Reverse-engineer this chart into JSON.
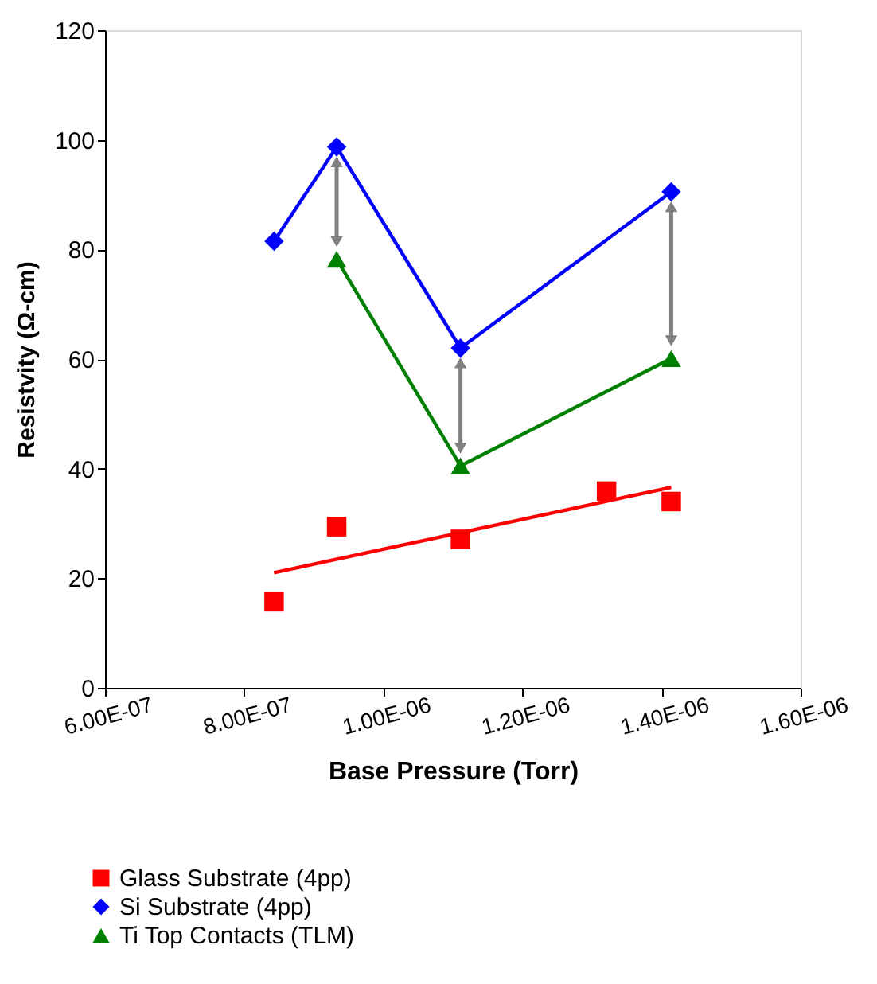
{
  "chart_data": {
    "type": "scatter",
    "xlabel": "Base Pressure (Torr)",
    "ylabel": "Resistvity (Ω-cm)",
    "xlim": [
      6e-07,
      1.6e-06
    ],
    "xticks": [
      {
        "value": 6e-07,
        "label": "6.00E-07"
      },
      {
        "value": 8e-07,
        "label": "8.00E-07"
      },
      {
        "value": 1e-06,
        "label": "1.00E-06"
      },
      {
        "value": 1.2e-06,
        "label": "1.20E-06"
      },
      {
        "value": 1.4e-06,
        "label": "1.40E-06"
      },
      {
        "value": 1.6e-06,
        "label": "1.60E-06"
      }
    ],
    "ylim": [
      0,
      120
    ],
    "yticks": [
      0,
      20,
      40,
      60,
      80,
      100,
      120
    ],
    "grid": false,
    "legend": "bottom",
    "series": [
      {
        "name": "Glass Substrate (4pp)",
        "marker": "square",
        "color": "#ff0000",
        "x": [
          8.43e-07,
          9.33e-07,
          1.111e-06,
          1.321e-06,
          1.414e-06
        ],
        "values": [
          15.7,
          29.4,
          27.1,
          35.9,
          34.0
        ]
      },
      {
        "name": "Si Substrate (4pp)",
        "type": "line",
        "marker": "diamond",
        "color": "#0000ff",
        "x": [
          8.43e-07,
          9.33e-07,
          1.111e-06,
          1.414e-06
        ],
        "values": [
          81.5,
          98.7,
          62.0,
          90.5
        ]
      },
      {
        "name": "Ti Top Contacts (TLM)",
        "type": "line",
        "marker": "triangle",
        "color": "#008000",
        "x": [
          9.33e-07,
          1.111e-06,
          1.414e-06
        ],
        "values": [
          78.2,
          40.5,
          60.1
        ]
      },
      {
        "type": "line",
        "marker": "none",
        "color": "#ff0000",
        "x": [
          8.43e-07,
          1.414e-06
        ],
        "values": [
          21.0,
          36.6
        ]
      }
    ]
  }
}
